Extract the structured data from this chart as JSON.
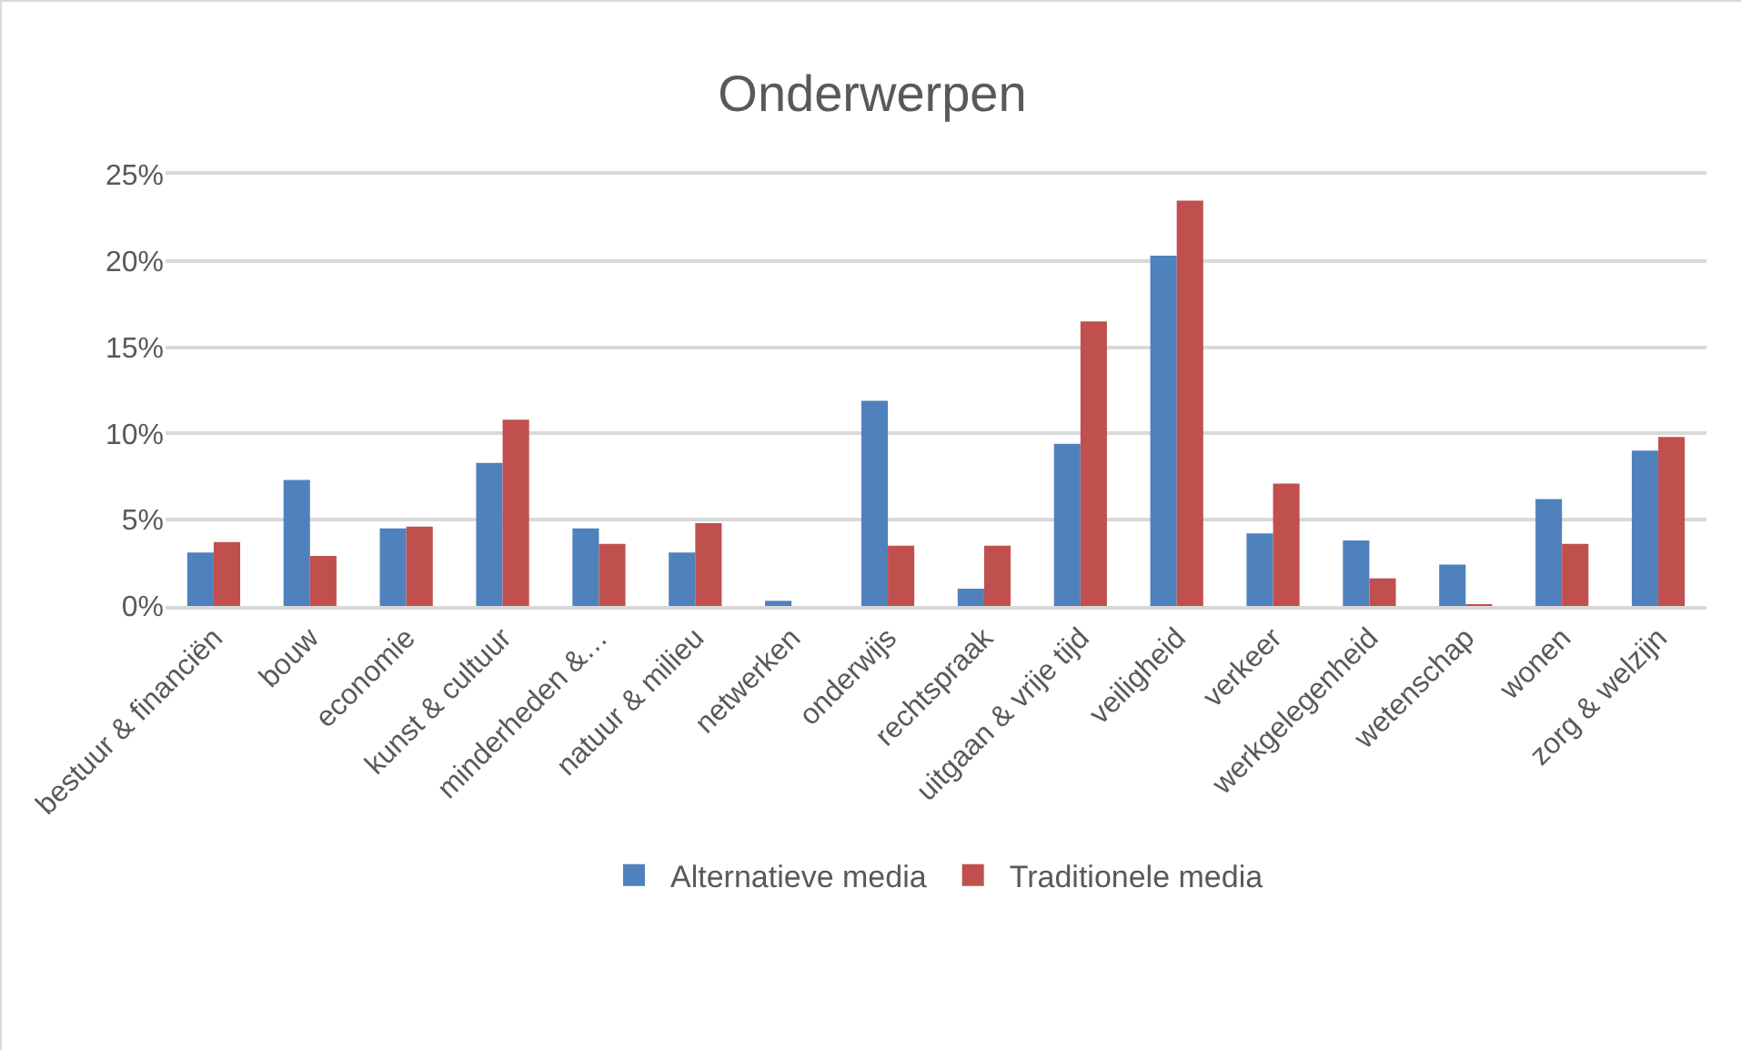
{
  "chart_data": {
    "type": "bar",
    "title": "Onderwerpen",
    "categories": [
      "bestuur & financiën",
      "bouw",
      "economie",
      "kunst & cultuur",
      "minderheden &…",
      "natuur & milieu",
      "netwerken",
      "onderwijs",
      "rechtspraak",
      "uitgaan & vrije tijd",
      "veiligheid",
      "verkeer",
      "werkgelegenheid",
      "wetenschap",
      "wonen",
      "zorg & welzijn"
    ],
    "series": [
      {
        "name": "Alternatieve media",
        "color": "#4f81bd",
        "values": [
          3.1,
          7.3,
          4.5,
          8.3,
          4.5,
          3.1,
          0.3,
          11.9,
          1.0,
          9.4,
          20.3,
          4.2,
          3.8,
          2.4,
          6.2,
          9.0
        ]
      },
      {
        "name": "Traditionele media",
        "color": "#c0504d",
        "values": [
          3.7,
          2.9,
          4.6,
          10.8,
          3.6,
          4.8,
          null,
          3.5,
          3.5,
          16.5,
          23.5,
          7.1,
          1.6,
          0.1,
          3.6,
          9.8
        ]
      }
    ],
    "ylim": [
      0,
      25
    ],
    "yticks": [
      {
        "value": 0,
        "label": "0%"
      },
      {
        "value": 5,
        "label": "5%"
      },
      {
        "value": 10,
        "label": "10%"
      },
      {
        "value": 15,
        "label": "15%"
      },
      {
        "value": 20,
        "label": "20%"
      },
      {
        "value": 25,
        "label": "25%"
      }
    ],
    "grid": "y",
    "legend": "bottom"
  }
}
